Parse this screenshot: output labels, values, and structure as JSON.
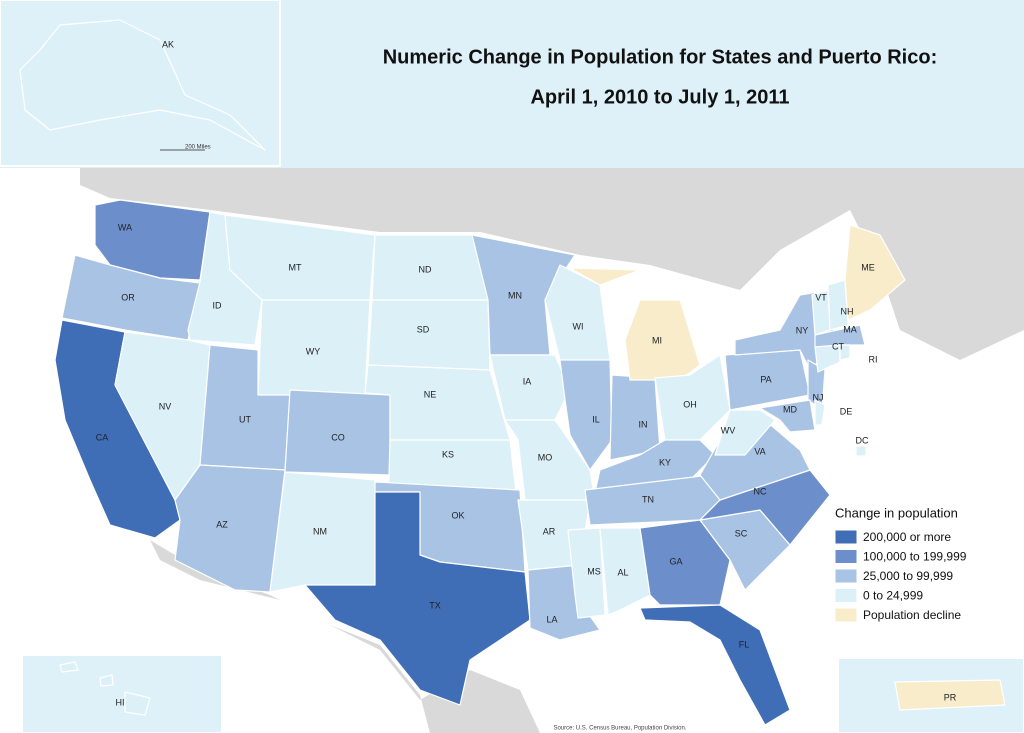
{
  "title": {
    "line1": "Numeric Change in Population for States and Puerto Rico:",
    "line2": "April 1, 2010 to July 1, 2011"
  },
  "legend": {
    "title": "Change in population",
    "items": [
      {
        "label": "200,000 or more",
        "color": "#3f6db6"
      },
      {
        "label": "100,000 to 199,999",
        "color": "#6c8fcb"
      },
      {
        "label": "25,000 to 99,999",
        "color": "#a9c3e4"
      },
      {
        "label": "0 to 24,999",
        "color": "#dcf0f8"
      },
      {
        "label": "Population decline",
        "color": "#f8ecca"
      }
    ]
  },
  "states": [
    {
      "label": "WA",
      "class": 1
    },
    {
      "label": "OR",
      "class": 2
    },
    {
      "label": "CA",
      "class": 0
    },
    {
      "label": "ID",
      "class": 3
    },
    {
      "label": "NV",
      "class": 3
    },
    {
      "label": "MT",
      "class": 3
    },
    {
      "label": "WY",
      "class": 3
    },
    {
      "label": "UT",
      "class": 2
    },
    {
      "label": "AZ",
      "class": 2
    },
    {
      "label": "CO",
      "class": 2
    },
    {
      "label": "NM",
      "class": 3
    },
    {
      "label": "ND",
      "class": 3
    },
    {
      "label": "SD",
      "class": 3
    },
    {
      "label": "NE",
      "class": 3
    },
    {
      "label": "KS",
      "class": 3
    },
    {
      "label": "OK",
      "class": 2
    },
    {
      "label": "TX",
      "class": 0
    },
    {
      "label": "MN",
      "class": 2
    },
    {
      "label": "IA",
      "class": 3
    },
    {
      "label": "MO",
      "class": 3
    },
    {
      "label": "AR",
      "class": 3
    },
    {
      "label": "LA",
      "class": 2
    },
    {
      "label": "WI",
      "class": 3
    },
    {
      "label": "IL",
      "class": 2
    },
    {
      "label": "IN",
      "class": 2
    },
    {
      "label": "MI",
      "class": 4
    },
    {
      "label": "OH",
      "class": 3
    },
    {
      "label": "KY",
      "class": 2
    },
    {
      "label": "TN",
      "class": 2
    },
    {
      "label": "MS",
      "class": 3
    },
    {
      "label": "AL",
      "class": 3
    },
    {
      "label": "GA",
      "class": 1
    },
    {
      "label": "FL",
      "class": 0
    },
    {
      "label": "SC",
      "class": 2
    },
    {
      "label": "NC",
      "class": 1
    },
    {
      "label": "VA",
      "class": 2
    },
    {
      "label": "WV",
      "class": 3
    },
    {
      "label": "PA",
      "class": 2
    },
    {
      "label": "NY",
      "class": 2
    },
    {
      "label": "NJ",
      "class": 2
    },
    {
      "label": "MD",
      "class": 2
    },
    {
      "label": "DE",
      "class": 3
    },
    {
      "label": "DC",
      "class": 3
    },
    {
      "label": "VT",
      "class": 3
    },
    {
      "label": "NH",
      "class": 3
    },
    {
      "label": "ME",
      "class": 4
    },
    {
      "label": "MA",
      "class": 2
    },
    {
      "label": "CT",
      "class": 3
    },
    {
      "label": "RI",
      "class": 3
    },
    {
      "label": "AK",
      "class": 3
    },
    {
      "label": "HI",
      "class": 3
    },
    {
      "label": "PR",
      "class": 4
    }
  ],
  "scale_label": "200 Miles",
  "source": "Source: U.S. Census Bureau, Population Division."
}
